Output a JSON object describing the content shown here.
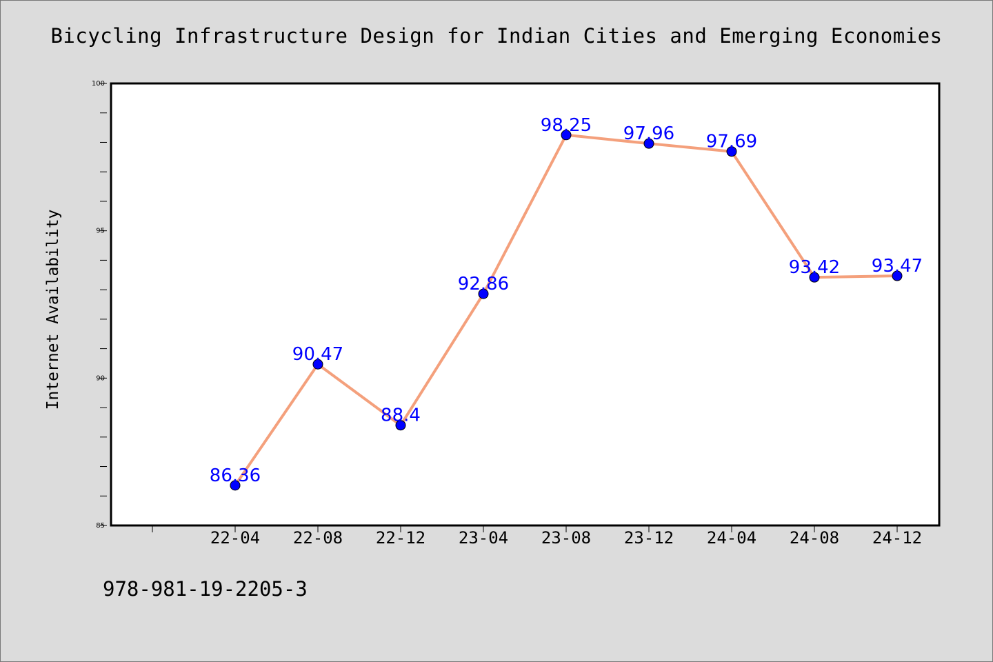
{
  "chart_data": {
    "type": "line",
    "title": "Bicycling Infrastructure Design for Indian Cities and Emerging Economies",
    "xlabel": "",
    "ylabel": "Internet Availability",
    "categories": [
      "22-04",
      "22-08",
      "22-12",
      "23-04",
      "23-08",
      "23-12",
      "24-04",
      "24-08",
      "24-12"
    ],
    "series": [
      {
        "values": [
          86.36,
          90.47,
          88.4,
          92.86,
          98.25,
          97.96,
          97.69,
          93.42,
          93.47
        ],
        "data_labels": [
          "86.36",
          "90.47",
          "88.4",
          "92.86",
          "98.25",
          "97.96",
          "97.69",
          "93.42",
          "93.47"
        ],
        "line_color": "#f4a07c",
        "marker_color": "#0000ff"
      }
    ],
    "ylim": [
      85,
      100
    ],
    "yticks": [
      85,
      90,
      95,
      100
    ],
    "ytick_labels": [
      "85",
      "90",
      "95",
      "100"
    ],
    "grid": false,
    "legend": "none",
    "label_color": "#0000ff"
  },
  "footer": {
    "isbn": "978-981-19-2205-3"
  }
}
